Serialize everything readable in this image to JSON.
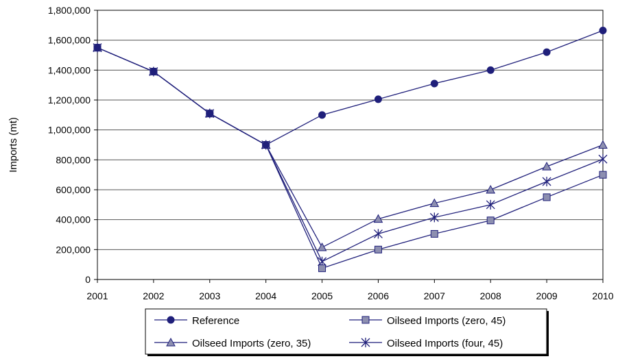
{
  "chart_data": {
    "type": "line",
    "ylabel": "Imports (mt)",
    "xlabel": "",
    "x": [
      "2001",
      "2002",
      "2003",
      "2004",
      "2005",
      "2006",
      "2007",
      "2008",
      "2009",
      "2010"
    ],
    "ylim": [
      0,
      1800000
    ],
    "yticks": [
      "0",
      "200,000",
      "400,000",
      "600,000",
      "800,000",
      "1,000,000",
      "1,200,000",
      "1,400,000",
      "1,600,000",
      "1,800,000"
    ],
    "grid": true,
    "legend_position": "bottom",
    "series_color": "#1f1f7a",
    "series": [
      {
        "name": "Reference",
        "marker": "circle",
        "fill": "#1f1f7a",
        "values": [
          1550000,
          1390000,
          1110000,
          900000,
          1100000,
          1205000,
          1310000,
          1400000,
          1520000,
          1665000
        ]
      },
      {
        "name": "Oilseed Imports (zero, 45)",
        "marker": "square",
        "fill": "#8d8fb0",
        "values": [
          1550000,
          1390000,
          1110000,
          900000,
          75000,
          200000,
          305000,
          395000,
          550000,
          700000
        ]
      },
      {
        "name": "Oilseed Imports (zero, 35)",
        "marker": "triangle",
        "fill": "#8d8fb0",
        "values": [
          1550000,
          1390000,
          1110000,
          900000,
          215000,
          405000,
          510000,
          600000,
          755000,
          900000
        ]
      },
      {
        "name": "Oilseed Imports (four, 45)",
        "marker": "star",
        "fill": "none",
        "values": [
          1550000,
          1390000,
          1110000,
          900000,
          120000,
          305000,
          415000,
          500000,
          655000,
          805000
        ]
      }
    ]
  }
}
